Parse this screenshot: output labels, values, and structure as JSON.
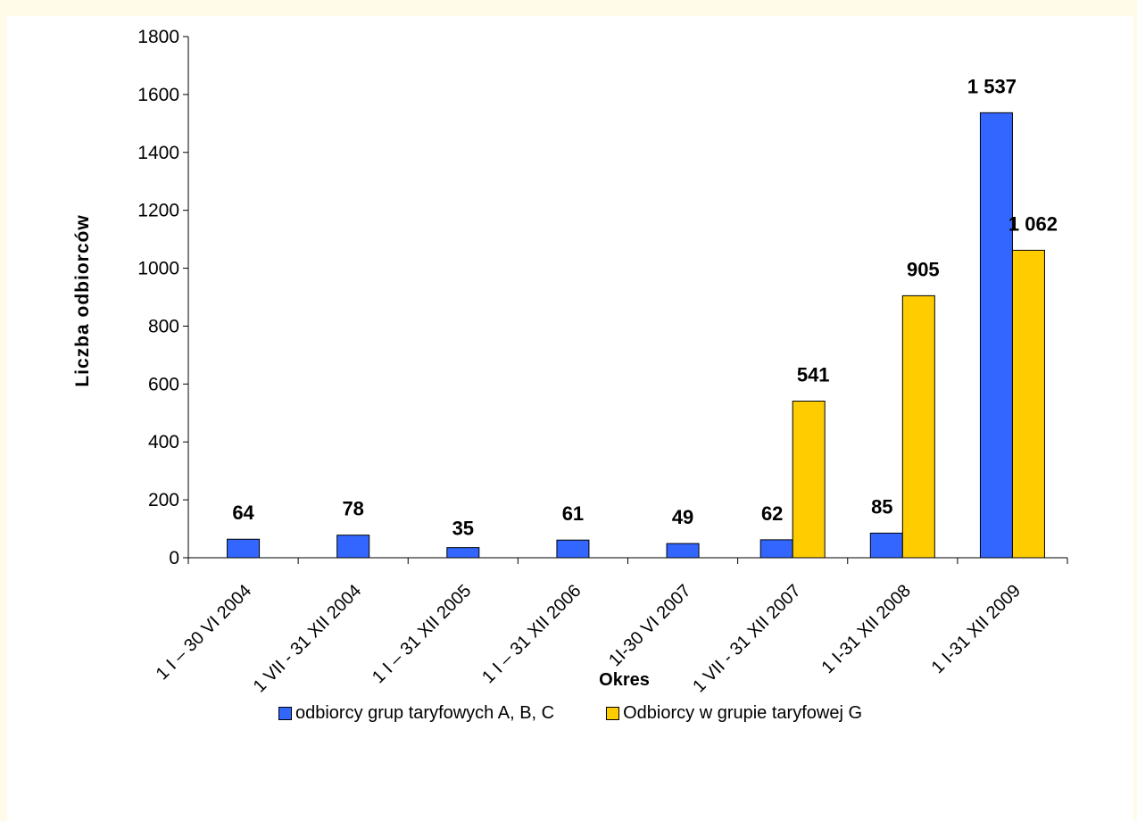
{
  "chart_data": {
    "type": "bar",
    "title": "",
    "xlabel": "Okres",
    "ylabel": "Liczba odbiorców",
    "ylim": [
      0,
      1800
    ],
    "yticks": [
      0,
      200,
      400,
      600,
      800,
      1000,
      1200,
      1400,
      1600,
      1800
    ],
    "grid": false,
    "legend": "bottom",
    "categories": [
      "1 I – 30 VI 2004",
      "1 VII - 31 XII 2004",
      "1 I – 31 XII 2005",
      "1 I – 31 XII 2006",
      "1I-30 VI 2007",
      "1 VII - 31 XII 2007",
      "1 I-31 XII 2008",
      "1 I-31 XII 2009"
    ],
    "series": [
      {
        "name": "odbiorcy grup taryfowych A, B, C",
        "color": "#3366ff",
        "values": [
          64,
          78,
          35,
          61,
          49,
          62,
          85,
          1537
        ],
        "labels": [
          "64",
          "78",
          "35",
          "61",
          "49",
          "62",
          "85",
          "1 537"
        ]
      },
      {
        "name": "Odbiorcy w grupie taryfowej G",
        "color": "#ffcc00",
        "values": [
          null,
          null,
          null,
          null,
          null,
          541,
          905,
          1062
        ],
        "labels": [
          "",
          "",
          "",
          "",
          "",
          "541",
          "905",
          "1 062"
        ]
      }
    ]
  }
}
